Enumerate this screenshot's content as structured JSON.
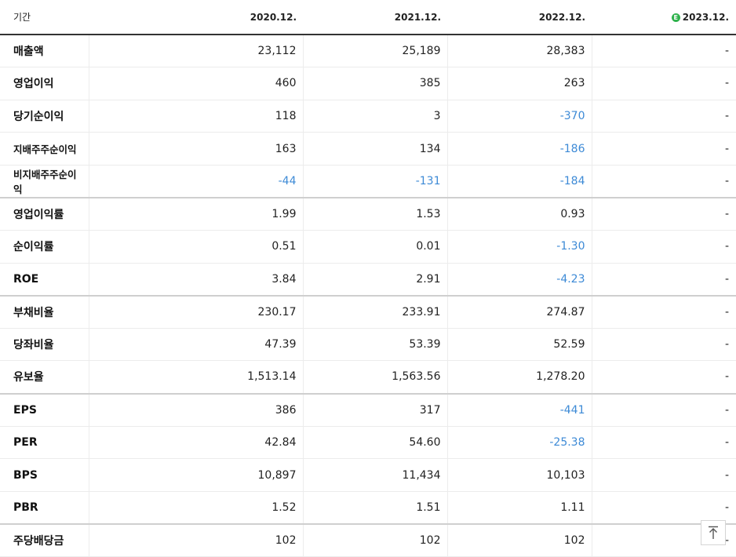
{
  "header": {
    "label": "기간",
    "periods": [
      "2020.12.",
      "2021.12.",
      "2022.12.",
      "2023.12."
    ],
    "estimate_icon": "E"
  },
  "rows": [
    {
      "label": "매출액",
      "values": [
        "23,112",
        "25,189",
        "28,383",
        "-"
      ]
    },
    {
      "label": "영업이익",
      "values": [
        "460",
        "385",
        "263",
        "-"
      ]
    },
    {
      "label": "당기순이익",
      "values": [
        "118",
        "3",
        "-370",
        "-"
      ]
    },
    {
      "label": "지배주주순이익",
      "values": [
        "163",
        "134",
        "-186",
        "-"
      ]
    },
    {
      "label": "비지배주주순이익",
      "values": [
        "-44",
        "-131",
        "-184",
        "-"
      ]
    },
    {
      "label": "영업이익률",
      "values": [
        "1.99",
        "1.53",
        "0.93",
        "-"
      ]
    },
    {
      "label": "순이익률",
      "values": [
        "0.51",
        "0.01",
        "-1.30",
        "-"
      ]
    },
    {
      "label": "ROE",
      "values": [
        "3.84",
        "2.91",
        "-4.23",
        "-"
      ]
    },
    {
      "label": "부채비율",
      "values": [
        "230.17",
        "233.91",
        "274.87",
        "-"
      ]
    },
    {
      "label": "당좌비율",
      "values": [
        "47.39",
        "53.39",
        "52.59",
        "-"
      ]
    },
    {
      "label": "유보율",
      "values": [
        "1,513.14",
        "1,563.56",
        "1,278.20",
        "-"
      ]
    },
    {
      "label": "EPS",
      "values": [
        "386",
        "317",
        "-441",
        "-"
      ]
    },
    {
      "label": "PER",
      "values": [
        "42.84",
        "54.60",
        "-25.38",
        "-"
      ]
    },
    {
      "label": "BPS",
      "values": [
        "10,897",
        "11,434",
        "10,103",
        "-"
      ]
    },
    {
      "label": "PBR",
      "values": [
        "1.52",
        "1.51",
        "1.11",
        "-"
      ]
    },
    {
      "label": "주당배당금",
      "values": [
        "102",
        "102",
        "102",
        "-"
      ]
    }
  ],
  "colors": {
    "negative": "#3d8ad6",
    "estimate": "#2fb24c"
  },
  "icons": {
    "scroll_top": "arrow-up-icon"
  }
}
